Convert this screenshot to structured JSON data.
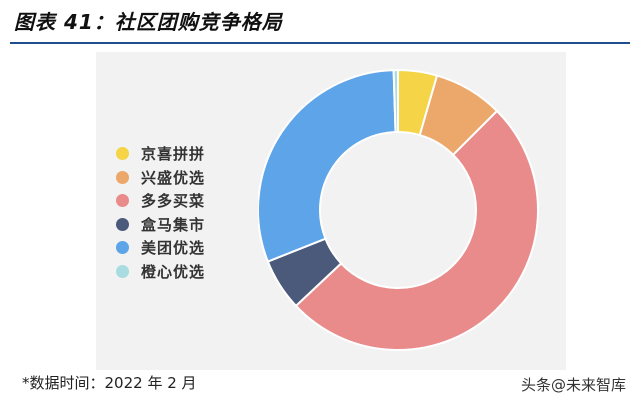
{
  "title": "图表 41：社区团购竞争格局",
  "footnote": "*数据时间：2022 年 2 月",
  "watermark": "头条@未来智库",
  "chart_data": {
    "type": "donut",
    "legend_position": "left",
    "series": [
      {
        "name": "京喜拼拼",
        "value": 4.5,
        "color": "#F5D447"
      },
      {
        "name": "兴盛优选",
        "value": 8.0,
        "color": "#ECA86A"
      },
      {
        "name": "多多买菜",
        "value": 50.5,
        "color": "#E98B8B"
      },
      {
        "name": "盒马集市",
        "value": 6.0,
        "color": "#4B5A7A"
      },
      {
        "name": "美团优选",
        "value": 30.5,
        "color": "#5EA4E8"
      },
      {
        "name": "橙心优选",
        "value": 0.5,
        "color": "#A8DCE0"
      }
    ]
  }
}
